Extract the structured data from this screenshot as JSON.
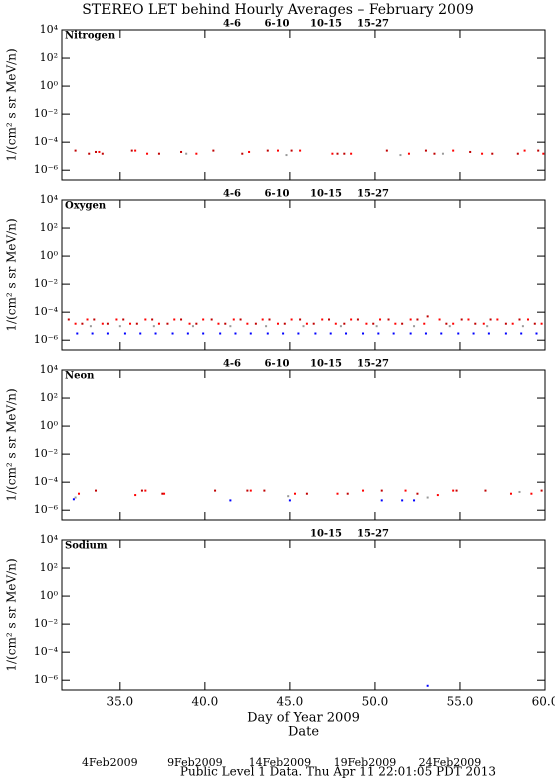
{
  "title": "STEREO LET behind Hourly Averages – February 2009",
  "footer": "Public Level 1 Data. Thu Apr 11 22:01:05 PDT 2013",
  "chart_data": [
    {
      "type": "scatter",
      "title": "Nitrogen",
      "ylabel": "1/(cm² s sr MeV/n)",
      "log_y": true,
      "xlim": [
        31.6,
        60
      ],
      "ylim": [
        2e-07,
        10000
      ],
      "yticks": [
        {
          "value": 10000,
          "label": "10⁴"
        },
        {
          "value": 100,
          "label": "10²"
        },
        {
          "value": 1,
          "label": "10⁰"
        },
        {
          "value": 0.01,
          "label": "10⁻²"
        },
        {
          "value": 0.0001,
          "label": "10⁻⁴"
        },
        {
          "value": 1e-06,
          "label": "10⁻⁶"
        }
      ],
      "series": [
        {
          "name": "4-6",
          "color": "#c00000",
          "x": [
            32.4,
            33.2,
            33.6,
            34.0,
            35.7,
            37.3,
            38.6,
            40.5,
            42.2,
            43.7,
            45.1,
            47.8,
            48.2,
            50.7,
            53.0,
            53.5,
            55.6,
            56.9,
            58.4,
            59.6
          ],
          "values": [
            2.5e-05,
            1.5e-05,
            2e-05,
            1.5e-05,
            2.5e-05,
            1.5e-05,
            2e-05,
            2.5e-05,
            1.5e-05,
            2.5e-05,
            2.5e-05,
            1.5e-05,
            1.5e-05,
            2.5e-05,
            2.5e-05,
            1.5e-05,
            2e-05,
            1.5e-05,
            1.5e-05,
            2.5e-05
          ]
        },
        {
          "name": "6-10",
          "color": "#ff0000",
          "x": [
            33.8,
            35.9,
            36.6,
            39.5,
            42.6,
            44.3,
            45.6,
            47.5,
            48.6,
            52.0,
            54.6,
            56.3,
            58.8,
            59.9
          ],
          "values": [
            2e-05,
            2.5e-05,
            1.5e-05,
            1.5e-05,
            2e-05,
            2.5e-05,
            2.5e-05,
            1.5e-05,
            1.5e-05,
            1.5e-05,
            2.5e-05,
            1.5e-05,
            2.5e-05,
            1.5e-05
          ]
        },
        {
          "name": "10-15",
          "color": "#999999",
          "x": [
            38.9,
            44.8,
            51.5,
            54.0
          ],
          "values": [
            1.5e-05,
            1.2e-05,
            1.2e-05,
            1.5e-05
          ]
        },
        {
          "name": "15-27",
          "color": "#0000ff",
          "x": [],
          "values": []
        }
      ]
    },
    {
      "type": "scatter",
      "title": "Oxygen",
      "ylabel": "1/(cm² s sr MeV/n)",
      "log_y": true,
      "xlim": [
        31.6,
        60
      ],
      "ylim": [
        2e-07,
        10000
      ],
      "yticks": [
        {
          "value": 10000,
          "label": "10⁴"
        },
        {
          "value": 100,
          "label": "10²"
        },
        {
          "value": 1,
          "label": "10⁰"
        },
        {
          "value": 0.01,
          "label": "10⁻²"
        },
        {
          "value": 0.0001,
          "label": "10⁻⁴"
        },
        {
          "value": 1e-06,
          "label": "10⁻⁶"
        }
      ],
      "series": [
        {
          "name": "4-6",
          "color": "#c00000",
          "x": [
            32.0,
            32.8,
            33.5,
            34.3,
            35.2,
            36.0,
            36.9,
            37.8,
            38.6,
            39.5,
            40.4,
            41.2,
            42.1,
            43.0,
            43.8,
            44.7,
            45.6,
            46.4,
            47.3,
            48.2,
            49.0,
            49.9,
            50.8,
            51.6,
            52.5,
            53.1,
            54.2,
            55.1,
            55.9,
            56.8,
            57.7,
            58.5,
            59.4
          ],
          "values": [
            3e-05,
            1.5e-05,
            3e-05,
            1.5e-05,
            3e-05,
            1.5e-05,
            3e-05,
            1.5e-05,
            3e-05,
            1.5e-05,
            3e-05,
            1.5e-05,
            3e-05,
            1.5e-05,
            3e-05,
            1.5e-05,
            3e-05,
            1.5e-05,
            3e-05,
            1.5e-05,
            3e-05,
            1.5e-05,
            3e-05,
            1.5e-05,
            3e-05,
            5e-05,
            1.5e-05,
            3e-05,
            1.5e-05,
            3e-05,
            1.5e-05,
            3e-05,
            1.5e-05
          ]
        },
        {
          "name": "6-10",
          "color": "#ff0000",
          "x": [
            32.4,
            33.1,
            34.0,
            34.8,
            35.6,
            36.5,
            37.3,
            38.2,
            39.1,
            39.9,
            40.8,
            41.7,
            42.5,
            43.4,
            44.3,
            45.1,
            46.0,
            46.9,
            47.7,
            48.6,
            49.5,
            50.3,
            51.2,
            52.1,
            52.9,
            53.8,
            54.6,
            55.5,
            56.4,
            57.2,
            58.1,
            59.0,
            59.8
          ],
          "values": [
            1.5e-05,
            3e-05,
            1.5e-05,
            3e-05,
            1.5e-05,
            3e-05,
            1.5e-05,
            3e-05,
            1.5e-05,
            3e-05,
            1.5e-05,
            3e-05,
            1.5e-05,
            3e-05,
            1.5e-05,
            3e-05,
            1.5e-05,
            3e-05,
            1.5e-05,
            3e-05,
            1.5e-05,
            3e-05,
            1.5e-05,
            3e-05,
            1.5e-05,
            3e-05,
            1.5e-05,
            3e-05,
            1.5e-05,
            3e-05,
            1.5e-05,
            3e-05,
            1.5e-05
          ]
        },
        {
          "name": "10-15",
          "color": "#999999",
          "x": [
            33.3,
            35.0,
            37.0,
            39.3,
            41.5,
            43.6,
            45.8,
            48.0,
            50.1,
            52.3,
            54.4,
            56.6,
            58.7
          ],
          "values": [
            1e-05,
            1e-05,
            1e-05,
            1e-05,
            1e-05,
            1e-05,
            1e-05,
            1e-05,
            1e-05,
            1e-05,
            1e-05,
            1e-05,
            1e-05
          ]
        },
        {
          "name": "15-27",
          "color": "#0000ff",
          "x": [
            32.5,
            33.4,
            34.3,
            35.3,
            36.2,
            37.1,
            38.1,
            39.0,
            39.9,
            40.9,
            41.8,
            42.7,
            43.7,
            44.6,
            45.5,
            46.5,
            47.4,
            48.3,
            49.3,
            50.2,
            51.1,
            52.1,
            53.0,
            53.9,
            54.9,
            55.8,
            56.7,
            57.7,
            58.6,
            59.5
          ],
          "values": [
            3e-06,
            3e-06,
            3e-06,
            3e-06,
            3e-06,
            3e-06,
            3e-06,
            3e-06,
            3e-06,
            3e-06,
            3e-06,
            3e-06,
            3e-06,
            3e-06,
            3e-06,
            3e-06,
            3e-06,
            3e-06,
            3e-06,
            3e-06,
            3e-06,
            3e-06,
            3e-06,
            3e-06,
            3e-06,
            3e-06,
            3e-06,
            3e-06,
            3e-06,
            3e-06
          ]
        }
      ]
    },
    {
      "type": "scatter",
      "title": "Neon",
      "ylabel": "1/(cm² s sr MeV/n)",
      "log_y": true,
      "xlim": [
        31.6,
        60
      ],
      "ylim": [
        2e-07,
        10000
      ],
      "yticks": [
        {
          "value": 10000,
          "label": "10⁴"
        },
        {
          "value": 100,
          "label": "10²"
        },
        {
          "value": 1,
          "label": "10⁰"
        },
        {
          "value": 0.01,
          "label": "10⁻²"
        },
        {
          "value": 0.0001,
          "label": "10⁻⁴"
        },
        {
          "value": 1e-06,
          "label": "10⁻⁶"
        }
      ],
      "series": [
        {
          "name": "4-6",
          "color": "#c00000",
          "x": [
            33.6,
            36.3,
            37.5,
            40.6,
            42.5,
            43.5,
            46.0,
            48.4,
            50.4,
            52.5,
            54.8,
            56.5,
            59.8
          ],
          "values": [
            2.5e-05,
            2.5e-05,
            1.5e-05,
            2.5e-05,
            2.5e-05,
            2.5e-05,
            1.5e-05,
            1.5e-05,
            2.5e-05,
            1.5e-05,
            2.5e-05,
            2.5e-05,
            2.5e-05
          ]
        },
        {
          "name": "6-10",
          "color": "#ff0000",
          "x": [
            32.6,
            35.9,
            36.5,
            37.6,
            42.7,
            45.3,
            47.8,
            49.3,
            51.8,
            53.7,
            54.6,
            58.0,
            59.2
          ],
          "values": [
            1.5e-05,
            1.2e-05,
            2.5e-05,
            1.5e-05,
            2.5e-05,
            1.5e-05,
            1.5e-05,
            2.5e-05,
            2.5e-05,
            1.2e-05,
            2.5e-05,
            1.5e-05,
            1.5e-05
          ]
        },
        {
          "name": "10-15",
          "color": "#999999",
          "x": [
            32.4,
            44.9,
            53.1,
            58.5
          ],
          "values": [
            8e-06,
            1e-05,
            8e-06,
            2e-05
          ]
        },
        {
          "name": "15-27",
          "color": "#0000ff",
          "x": [
            32.3,
            41.5,
            45.0,
            50.4,
            51.6,
            52.3
          ],
          "values": [
            6e-06,
            5e-06,
            5e-06,
            5e-06,
            5e-06,
            5e-06
          ]
        }
      ]
    },
    {
      "type": "scatter",
      "title": "Sodium",
      "ylabel": "1/(cm² s sr MeV/n)",
      "log_y": true,
      "xlim": [
        31.6,
        60
      ],
      "ylim": [
        2e-07,
        10000
      ],
      "yticks": [
        {
          "value": 10000,
          "label": "10⁴"
        },
        {
          "value": 100,
          "label": "10²"
        },
        {
          "value": 1,
          "label": "10⁰"
        },
        {
          "value": 0.01,
          "label": "10⁻²"
        },
        {
          "value": 0.0001,
          "label": "10⁻⁴"
        },
        {
          "value": 1e-06,
          "label": "10⁻⁶"
        }
      ],
      "xlabel": "Day of Year 2009",
      "xticks": [
        {
          "value": 35,
          "label": "35.0"
        },
        {
          "value": 40,
          "label": "40.0"
        },
        {
          "value": 45,
          "label": "45.0"
        },
        {
          "value": 50,
          "label": "50.0"
        },
        {
          "value": 55,
          "label": "55.0"
        },
        {
          "value": 60,
          "label": "60.0"
        }
      ],
      "x2label": "Date",
      "x2ticks": [
        {
          "value": 35,
          "label": "4Feb2009"
        },
        {
          "value": 40,
          "label": "9Feb2009"
        },
        {
          "value": 45,
          "label": "14Feb2009"
        },
        {
          "value": 50,
          "label": "19Feb2009"
        },
        {
          "value": 55,
          "label": "24Feb2009"
        }
      ],
      "series": [
        {
          "name": "10-15",
          "color": "#999999",
          "x": [],
          "values": []
        },
        {
          "name": "15-27",
          "color": "#0000ff",
          "x": [
            53.1
          ],
          "values": [
            4e-07
          ]
        }
      ]
    }
  ]
}
